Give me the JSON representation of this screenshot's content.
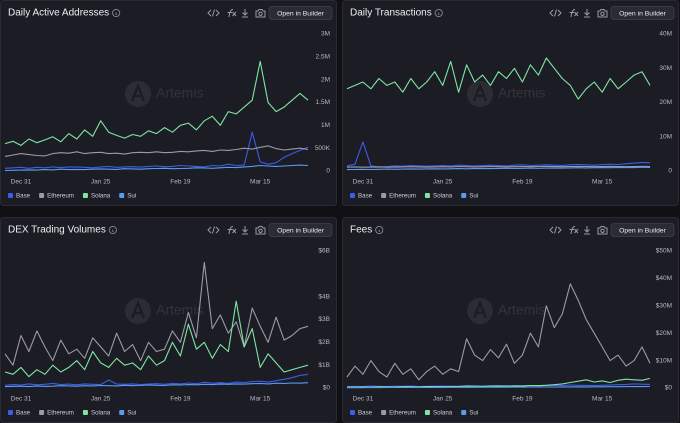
{
  "button_label": "Open in Builder",
  "watermark": "Artemis",
  "chart_data": [
    {
      "type": "line",
      "title": "Daily Active Addresses",
      "categories": [
        null,
        null,
        "Dec 31",
        null,
        null,
        null,
        null,
        null,
        null,
        null,
        null,
        null,
        "Jan 25",
        null,
        null,
        null,
        null,
        null,
        null,
        null,
        null,
        null,
        "Feb 19",
        null,
        null,
        null,
        null,
        null,
        null,
        null,
        null,
        null,
        "Mar 15",
        null,
        null,
        null,
        null,
        null,
        null
      ],
      "ylim": [
        0,
        3000000
      ],
      "yticks": [
        0,
        {
          "value": 500000,
          "label": "500K"
        },
        {
          "value": 1000000,
          "label": "1M"
        },
        {
          "value": 1500000,
          "label": "1.5M"
        },
        {
          "value": 2000000,
          "label": "2M"
        },
        {
          "value": 2500000,
          "label": "2.5M"
        },
        {
          "value": 3000000,
          "label": "3M"
        }
      ],
      "series": [
        {
          "name": "Base",
          "color": "#3d5ce8",
          "values": [
            60000,
            70000,
            80000,
            60000,
            80000,
            70000,
            90000,
            75000,
            90000,
            85000,
            80000,
            70000,
            90000,
            100000,
            80000,
            90000,
            95000,
            85000,
            100000,
            110000,
            95000,
            100000,
            120000,
            110000,
            100000,
            90000,
            120000,
            110000,
            150000,
            120000,
            130000,
            850000,
            200000,
            150000,
            180000,
            300000,
            380000,
            450000,
            520000
          ]
        },
        {
          "name": "Ethereum",
          "color": "#9d9aa8",
          "values": [
            320000,
            350000,
            380000,
            360000,
            340000,
            330000,
            380000,
            400000,
            390000,
            420000,
            380000,
            400000,
            410000,
            380000,
            390000,
            370000,
            400000,
            410000,
            400000,
            420000,
            400000,
            410000,
            430000,
            420000,
            440000,
            450000,
            430000,
            460000,
            450000,
            470000,
            500000,
            480000,
            520000,
            550000,
            490000,
            460000,
            480000,
            500000,
            470000
          ]
        },
        {
          "name": "Solana",
          "color": "#7ee6a2",
          "values": [
            600000,
            650000,
            560000,
            700000,
            620000,
            680000,
            750000,
            640000,
            820000,
            700000,
            900000,
            760000,
            1100000,
            850000,
            780000,
            720000,
            800000,
            760000,
            880000,
            820000,
            950000,
            850000,
            1000000,
            1050000,
            900000,
            1100000,
            1200000,
            1000000,
            1300000,
            1250000,
            1400000,
            1550000,
            2400000,
            1500000,
            1300000,
            1400000,
            1550000,
            1700000,
            1550000
          ]
        },
        {
          "name": "Sui",
          "color": "#5b9af0",
          "values": [
            10000,
            15000,
            20000,
            25000,
            20000,
            30000,
            25000,
            40000,
            30000,
            35000,
            30000,
            40000,
            45000,
            40000,
            35000,
            50000,
            45000,
            40000,
            50000,
            55000,
            60000,
            50000,
            55000,
            60000,
            70000,
            65000,
            60000,
            70000,
            80000,
            75000,
            90000,
            100000,
            120000,
            110000,
            100000,
            110000,
            120000,
            130000,
            120000
          ]
        }
      ]
    },
    {
      "type": "line",
      "title": "Daily Transactions",
      "categories": [
        null,
        null,
        "Dec 31",
        null,
        null,
        null,
        null,
        null,
        null,
        null,
        null,
        null,
        "Jan 25",
        null,
        null,
        null,
        null,
        null,
        null,
        null,
        null,
        null,
        "Feb 19",
        null,
        null,
        null,
        null,
        null,
        null,
        null,
        null,
        null,
        "Mar 15",
        null,
        null,
        null,
        null,
        null,
        null
      ],
      "ylim": [
        0,
        40000000
      ],
      "yticks": [
        0,
        {
          "value": 10000000,
          "label": "10M"
        },
        {
          "value": 20000000,
          "label": "20M"
        },
        {
          "value": 30000000,
          "label": "30M"
        },
        {
          "value": 40000000,
          "label": "40M"
        }
      ],
      "series": [
        {
          "name": "Base",
          "color": "#3d5ce8",
          "values": [
            1500000,
            2000000,
            8500000,
            1500000,
            1200000,
            1300000,
            1500000,
            1400000,
            1600000,
            1500000,
            1400000,
            1500000,
            1600000,
            1500000,
            1700000,
            1600000,
            1500000,
            1600000,
            1700000,
            1600000,
            1500000,
            1700000,
            1800000,
            1600000,
            1700000,
            1800000,
            1700000,
            1600000,
            1800000,
            1900000,
            1800000,
            1700000,
            1900000,
            2000000,
            1900000,
            2100000,
            2300000,
            2500000,
            2400000
          ]
        },
        {
          "name": "Ethereum",
          "color": "#9d9aa8",
          "values": [
            1100000,
            1200000,
            1100000,
            1150000,
            1200000,
            1100000,
            1150000,
            1200000,
            1250000,
            1200000,
            1150000,
            1200000,
            1250000,
            1200000,
            1300000,
            1250000,
            1200000,
            1250000,
            1300000,
            1250000,
            1200000,
            1250000,
            1300000,
            1250000,
            1300000,
            1350000,
            1300000,
            1250000,
            1300000,
            1350000,
            1300000,
            1250000,
            1300000,
            1350000,
            1300000,
            1250000,
            1300000,
            1350000,
            1300000
          ]
        },
        {
          "name": "Solana",
          "color": "#7ee6a2",
          "values": [
            24000000,
            25000000,
            26000000,
            24000000,
            27000000,
            25000000,
            26000000,
            23000000,
            27000000,
            24000000,
            26000000,
            29000000,
            25000000,
            32000000,
            23000000,
            31000000,
            26000000,
            28000000,
            25000000,
            29000000,
            27000000,
            30000000,
            26000000,
            31000000,
            28000000,
            33000000,
            30000000,
            27000000,
            25000000,
            21000000,
            24000000,
            26000000,
            23000000,
            27000000,
            24000000,
            26000000,
            28000000,
            29000000,
            25000000
          ]
        },
        {
          "name": "Sui",
          "color": "#5b9af0",
          "values": [
            400000,
            450000,
            500000,
            450000,
            500000,
            550000,
            500000,
            550000,
            600000,
            550000,
            600000,
            650000,
            600000,
            650000,
            700000,
            650000,
            700000,
            750000,
            700000,
            750000,
            800000,
            750000,
            800000,
            850000,
            800000,
            850000,
            900000,
            850000,
            900000,
            950000,
            900000,
            950000,
            1000000,
            950000,
            1000000,
            1050000,
            1000000,
            1100000,
            1050000
          ]
        }
      ]
    },
    {
      "type": "line",
      "title": "DEX Trading Volumes",
      "categories": [
        null,
        null,
        "Dec 31",
        null,
        null,
        null,
        null,
        null,
        null,
        null,
        null,
        null,
        "Jan 25",
        null,
        null,
        null,
        null,
        null,
        null,
        null,
        null,
        null,
        "Feb 19",
        null,
        null,
        null,
        null,
        null,
        null,
        null,
        null,
        null,
        "Mar 15",
        null,
        null,
        null,
        null,
        null,
        null
      ],
      "ylim": [
        0,
        6000000000
      ],
      "yticks": [
        {
          "value": 0,
          "label": "$0"
        },
        {
          "value": 1000000000,
          "label": "$1B"
        },
        {
          "value": 2000000000,
          "label": "$2B"
        },
        {
          "value": 3000000000,
          "label": "$3B"
        },
        {
          "value": 4000000000,
          "label": "$4B"
        },
        {
          "value": 6000000000,
          "label": "$6B"
        }
      ],
      "series": [
        {
          "name": "Base",
          "color": "#3d5ce8",
          "values": [
            120000000,
            150000000,
            130000000,
            180000000,
            140000000,
            160000000,
            200000000,
            150000000,
            170000000,
            140000000,
            180000000,
            160000000,
            150000000,
            350000000,
            170000000,
            160000000,
            180000000,
            150000000,
            170000000,
            190000000,
            160000000,
            200000000,
            180000000,
            220000000,
            190000000,
            250000000,
            210000000,
            230000000,
            200000000,
            260000000,
            240000000,
            280000000,
            300000000,
            260000000,
            320000000,
            380000000,
            450000000,
            550000000,
            600000000
          ]
        },
        {
          "name": "Ethereum",
          "color": "#9d9aa8",
          "values": [
            1500000000,
            1000000000,
            2300000000,
            1600000000,
            2500000000,
            1800000000,
            1200000000,
            2100000000,
            1500000000,
            1700000000,
            1300000000,
            2200000000,
            1800000000,
            1400000000,
            2400000000,
            1600000000,
            1900000000,
            1200000000,
            2000000000,
            1600000000,
            1700000000,
            2500000000,
            2000000000,
            3300000000,
            2200000000,
            5500000000,
            2600000000,
            3200000000,
            2400000000,
            2900000000,
            1800000000,
            3500000000,
            2700000000,
            2000000000,
            3100000000,
            2100000000,
            2300000000,
            2600000000,
            2700000000
          ]
        },
        {
          "name": "Solana",
          "color": "#7ee6a2",
          "values": [
            700000000,
            600000000,
            900000000,
            500000000,
            800000000,
            600000000,
            1000000000,
            700000000,
            900000000,
            1200000000,
            800000000,
            1600000000,
            1100000000,
            900000000,
            1300000000,
            1000000000,
            1100000000,
            800000000,
            1400000000,
            1000000000,
            1200000000,
            2000000000,
            1400000000,
            2800000000,
            1700000000,
            2000000000,
            1300000000,
            1900000000,
            1600000000,
            3800000000,
            1800000000,
            2600000000,
            900000000,
            1500000000,
            1100000000,
            700000000,
            800000000,
            900000000,
            1000000000
          ]
        },
        {
          "name": "Sui",
          "color": "#5b9af0",
          "values": [
            60000000,
            70000000,
            80000000,
            60000000,
            90000000,
            70000000,
            80000000,
            100000000,
            90000000,
            80000000,
            100000000,
            90000000,
            110000000,
            100000000,
            90000000,
            120000000,
            100000000,
            110000000,
            130000000,
            120000000,
            110000000,
            140000000,
            130000000,
            150000000,
            140000000,
            160000000,
            150000000,
            170000000,
            160000000,
            180000000,
            170000000,
            190000000,
            200000000,
            180000000,
            210000000,
            200000000,
            220000000,
            210000000,
            230000000
          ]
        }
      ]
    },
    {
      "type": "line",
      "title": "Fees",
      "categories": [
        null,
        null,
        "Dec 31",
        null,
        null,
        null,
        null,
        null,
        null,
        null,
        null,
        null,
        "Jan 25",
        null,
        null,
        null,
        null,
        null,
        null,
        null,
        null,
        null,
        "Feb 19",
        null,
        null,
        null,
        null,
        null,
        null,
        null,
        null,
        null,
        "Mar 15",
        null,
        null,
        null,
        null,
        null,
        null
      ],
      "ylim": [
        0,
        50000000
      ],
      "yticks": [
        {
          "value": 0,
          "label": "$0"
        },
        {
          "value": 10000000,
          "label": "$10M"
        },
        {
          "value": 20000000,
          "label": "$20M"
        },
        {
          "value": 30000000,
          "label": "$30M"
        },
        {
          "value": 40000000,
          "label": "$40M"
        },
        {
          "value": 50000000,
          "label": "$50M"
        }
      ],
      "series": [
        {
          "name": "Base",
          "color": "#3d5ce8",
          "values": [
            500000,
            600000,
            550000,
            700000,
            600000,
            500000,
            650000,
            600000,
            700000,
            550000,
            600000,
            650000,
            700000,
            600000,
            650000,
            800000,
            750000,
            700000,
            800000,
            750000,
            850000,
            700000,
            800000,
            900000,
            850000,
            1000000,
            900000,
            950000,
            1100000,
            1000000,
            950000,
            900000,
            1000000,
            1100000,
            1200000,
            1300000,
            1500000,
            1400000,
            1300000
          ]
        },
        {
          "name": "Ethereum",
          "color": "#9d9aa8",
          "values": [
            4000000,
            8000000,
            5000000,
            10000000,
            6000000,
            4000000,
            9000000,
            5000000,
            7000000,
            3000000,
            6000000,
            8000000,
            5000000,
            7000000,
            6000000,
            18000000,
            12000000,
            10000000,
            14000000,
            11000000,
            16000000,
            9000000,
            12000000,
            20000000,
            15000000,
            30000000,
            22000000,
            27000000,
            38000000,
            32000000,
            25000000,
            20000000,
            15000000,
            10000000,
            12000000,
            8000000,
            10000000,
            15000000,
            9000000
          ]
        },
        {
          "name": "Solana",
          "color": "#7ee6a2",
          "values": [
            300000,
            350000,
            400000,
            300000,
            450000,
            400000,
            350000,
            500000,
            450000,
            400000,
            500000,
            550000,
            450000,
            600000,
            500000,
            700000,
            650000,
            600000,
            700000,
            750000,
            650000,
            800000,
            700000,
            900000,
            850000,
            1000000,
            1200000,
            1500000,
            2000000,
            2500000,
            3000000,
            2200000,
            2600000,
            2000000,
            2800000,
            3200000,
            3000000,
            2800000,
            3500000
          ]
        },
        {
          "name": "Sui",
          "color": "#5b9af0",
          "values": [
            100000,
            150000,
            120000,
            180000,
            150000,
            200000,
            170000,
            210000,
            190000,
            220000,
            200000,
            240000,
            230000,
            250000,
            240000,
            280000,
            260000,
            300000,
            290000,
            320000,
            300000,
            340000,
            330000,
            360000,
            350000,
            380000,
            370000,
            400000,
            390000,
            420000,
            410000,
            450000,
            440000,
            480000,
            470000,
            500000,
            520000,
            510000,
            540000
          ]
        }
      ]
    }
  ]
}
